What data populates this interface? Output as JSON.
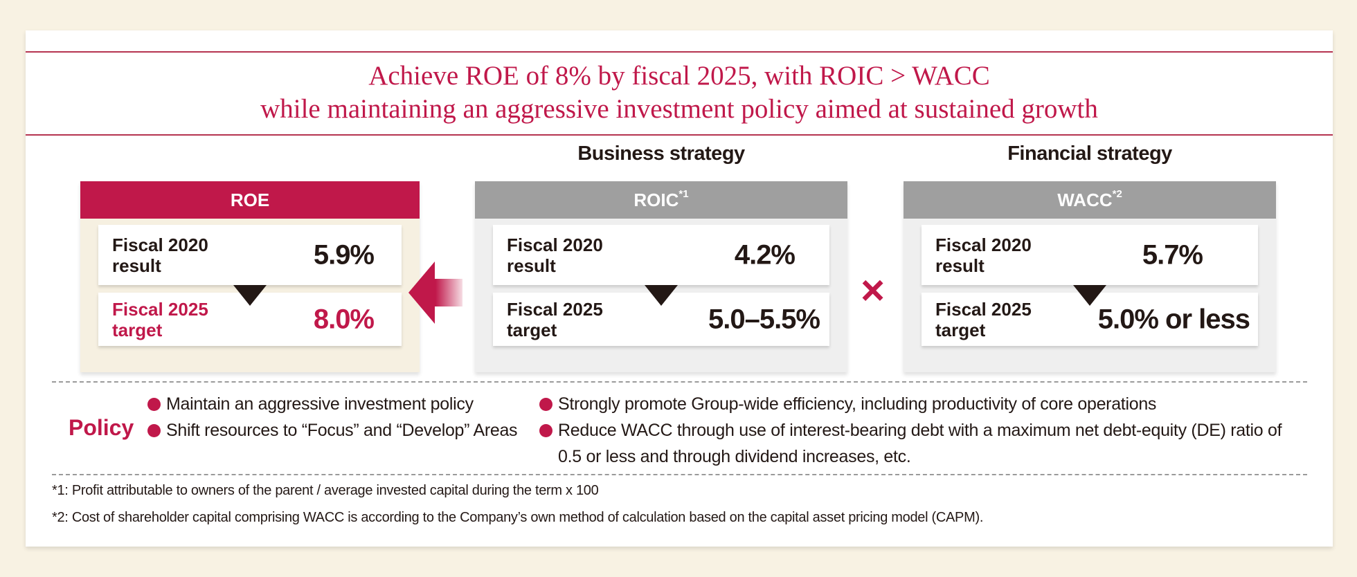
{
  "title": {
    "line1": "Achieve ROE of 8% by fiscal 2025, with ROIC > WACC",
    "line2": "while maintaining an aggressive investment policy aimed at sustained growth"
  },
  "headings": {
    "business": "Business strategy",
    "financial": "Financial strategy"
  },
  "roe": {
    "header": "ROE",
    "result_label1": "Fiscal 2020",
    "result_label2": "result",
    "result_value": "5.9%",
    "target_label1": "Fiscal 2025",
    "target_label2": "target",
    "target_value": "8.0%"
  },
  "roic": {
    "header": "ROIC",
    "note": "*1",
    "result_label1": "Fiscal 2020",
    "result_label2": "result",
    "result_value": "4.2%",
    "target_label1": "Fiscal 2025",
    "target_label2": "target",
    "target_value": "5.0–5.5%"
  },
  "wacc": {
    "header": "WACC",
    "note": "*2",
    "result_label1": "Fiscal 2020",
    "result_label2": "result",
    "result_value": "5.7%",
    "target_label1": "Fiscal 2025",
    "target_label2": "target",
    "target_value": "5.0% or less"
  },
  "operator": "×",
  "policy": {
    "label": "Policy",
    "left": [
      "Maintain an aggressive investment policy",
      "Shift resources to “Focus” and “Develop” Areas"
    ],
    "right": [
      "Strongly promote Group-wide efficiency, including productivity of core operations",
      "Reduce WACC through use of interest-bearing debt with a maximum net debt-equity (DE) ratio of 0.5 or less and through dividend increases, etc."
    ]
  },
  "footnotes": [
    "*1: Profit attributable to owners of the parent / average invested capital during the term x 100",
    "*2: Cost of shareholder capital comprising WACC is according to the Company’s own method of calculation based on the capital asset pricing model (CAPM)."
  ],
  "colors": {
    "accent": "#c0184a",
    "gray_header": "#9f9f9f",
    "background": "#f8f2e3"
  }
}
